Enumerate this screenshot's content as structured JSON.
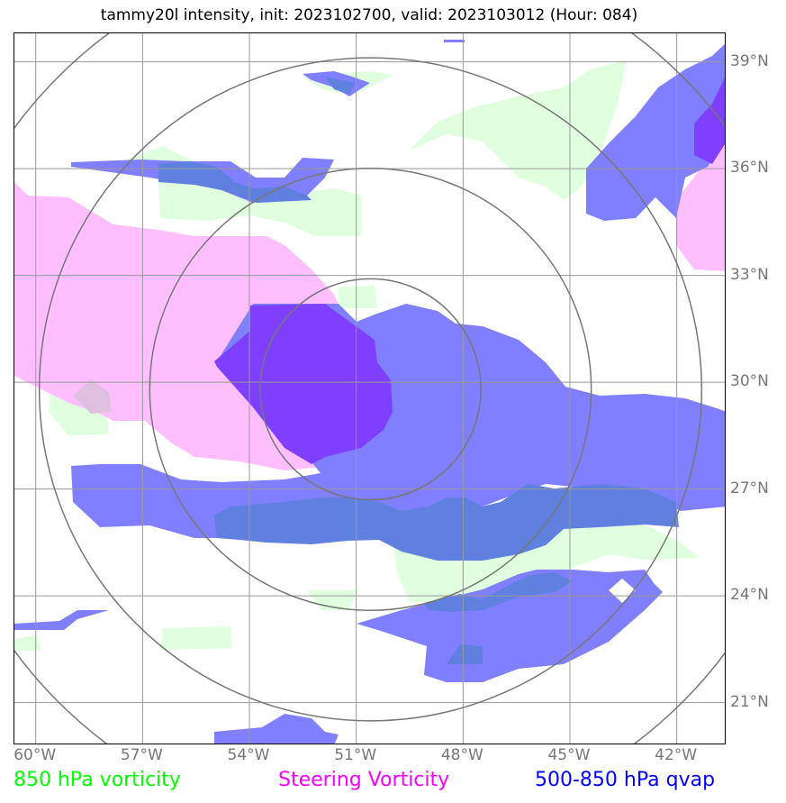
{
  "title": "tammy20l intensity, init: 2023102700, valid: 2023103012 (Hour: 084)",
  "legend": [
    {
      "label": "850 hPa vorticity",
      "color": "#00ff00"
    },
    {
      "label": "Steering Vorticity",
      "color": "#ff00ff"
    },
    {
      "label": "500-850 hPa qvap",
      "color": "#0000ff"
    }
  ],
  "fill_colors": {
    "vorticity_850": "#dfffdf",
    "steering_vorticity": "#ffbfff",
    "qvap": "#7f7fff",
    "qvap_over_vorticity": "#5f80df",
    "qvap_over_steering": "#7f3fff",
    "overlap_steer_vort": "#dfbfdf"
  },
  "grid": {
    "line_color": "#999999",
    "range_ring_color": "#777777"
  },
  "longitudes": [
    "60°W",
    "57°W",
    "54°W",
    "51°W",
    "48°W",
    "45°W",
    "42°W"
  ],
  "latitudes": [
    "21°N",
    "24°N",
    "27°N",
    "30°N",
    "33°N",
    "36°N",
    "39°N"
  ],
  "center": {
    "lat": 29.8,
    "lon": -50.6
  },
  "map_extent": {
    "lon_min": -60.6,
    "lon_max": -40.6,
    "lat_min": 19.8,
    "lat_max": 39.8
  }
}
